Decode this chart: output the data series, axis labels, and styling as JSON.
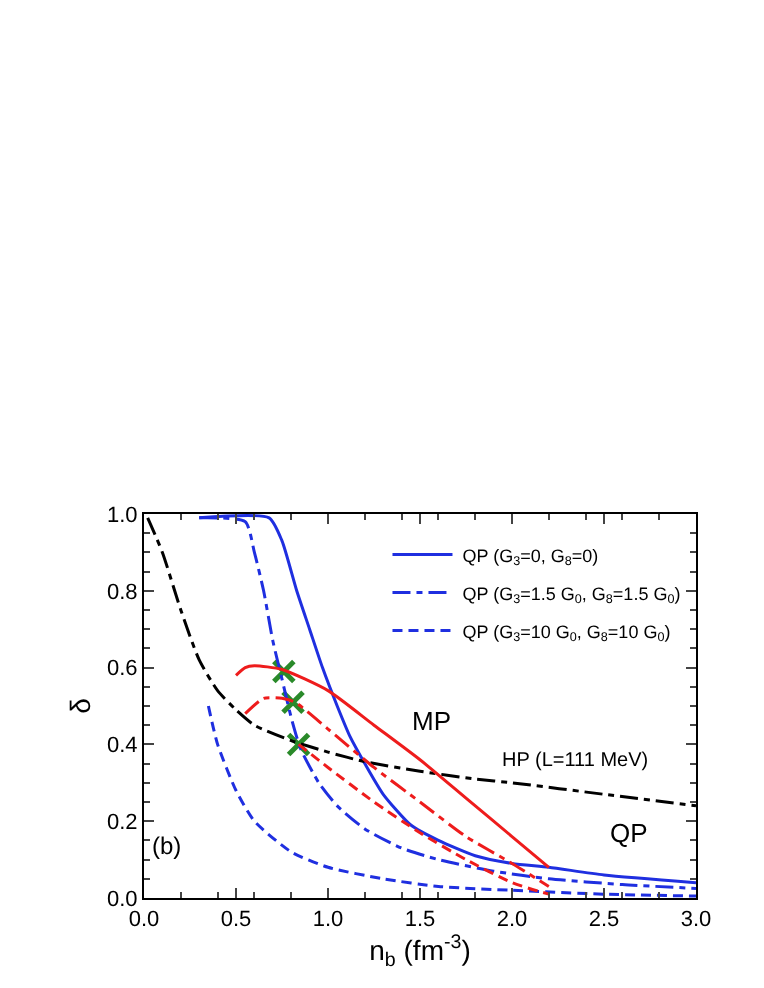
{
  "chart_data": {
    "type": "line",
    "xlabel": "n$_{b}$ (fm$^{-3}$)",
    "ylabel": "δ",
    "xlim": [
      0,
      3
    ],
    "ylim": [
      0,
      1
    ],
    "xticks": [
      {
        "value": 0,
        "label": "0.0"
      },
      0.5,
      {
        "value": 1,
        "label": "1.0"
      },
      1.5,
      {
        "value": 2,
        "label": "2.0"
      },
      2.5,
      {
        "value": 3,
        "label": "3.0"
      }
    ],
    "yticks": [
      {
        "value": 0,
        "label": "0.0"
      },
      0.2,
      0.4,
      0.6,
      0.8,
      {
        "value": 1,
        "label": "1.0"
      }
    ],
    "legend": "top right",
    "marker": "none",
    "series": [
      {
        "name": "QP (G$_{3}$=0, G$_{8}$=0)",
        "color": "#1f2fe0",
        "line_style": "solid",
        "x": [
          0.3,
          0.68,
          0.75,
          0.83,
          0.9,
          0.97,
          1.05,
          1.12,
          1.2,
          1.3,
          1.45,
          1.6,
          1.8,
          2.0,
          2.2,
          2.5,
          3.0
        ],
        "values": [
          0.99,
          0.99,
          0.93,
          0.8,
          0.7,
          0.6,
          0.5,
          0.42,
          0.35,
          0.27,
          0.19,
          0.15,
          0.11,
          0.09,
          0.08,
          0.06,
          0.04
        ]
      },
      {
        "name": "QP (G$_{3}$=1.5 G$_{0}$, G$_{8}$=1.5 G$_{0}$)",
        "color": "#1f2fe0",
        "line_style": "dashdot",
        "x": [
          0.3,
          0.55,
          0.6,
          0.65,
          0.7,
          0.75,
          0.8,
          0.85,
          0.95,
          1.05,
          1.2,
          1.4,
          1.6,
          1.9,
          2.2,
          2.6,
          3.0
        ],
        "values": [
          0.99,
          0.98,
          0.9,
          0.8,
          0.67,
          0.57,
          0.47,
          0.39,
          0.3,
          0.24,
          0.18,
          0.13,
          0.1,
          0.07,
          0.05,
          0.035,
          0.025
        ]
      },
      {
        "name": "QP (G$_{3}$=10 G$_{0}$, G$_{8}$=10 G$_{0}$)",
        "color": "#1f2fe0",
        "line_style": "dashed",
        "x": [
          0.35,
          0.4,
          0.5,
          0.6,
          0.8,
          1.0,
          1.3,
          1.6,
          2.0,
          2.5,
          3.0
        ],
        "values": [
          0.5,
          0.4,
          0.28,
          0.2,
          0.12,
          0.08,
          0.05,
          0.03,
          0.02,
          0.01,
          0.005
        ]
      },
      {
        "color": "#000000",
        "line_style": "dashdot",
        "x": [
          0.02,
          0.1,
          0.2,
          0.3,
          0.4,
          0.5,
          0.6,
          0.8,
          1.0,
          1.2,
          1.5,
          1.8,
          2.0,
          2.5,
          3.0
        ],
        "values": [
          0.99,
          0.9,
          0.75,
          0.62,
          0.54,
          0.49,
          0.45,
          0.41,
          0.38,
          0.355,
          0.33,
          0.31,
          0.3,
          0.27,
          0.24
        ]
      },
      {
        "color": "#ee1c1c",
        "line_style": "solid",
        "x": [
          0.5,
          0.55,
          0.6,
          0.75,
          1.0,
          1.25,
          1.5,
          1.75,
          2.0,
          2.2
        ],
        "values": [
          0.58,
          0.6,
          0.605,
          0.595,
          0.54,
          0.45,
          0.36,
          0.26,
          0.16,
          0.08
        ]
      },
      {
        "color": "#ee1c1c",
        "line_style": "dashdot",
        "x": [
          0.55,
          0.65,
          0.75,
          0.82,
          1.0,
          1.25,
          1.5,
          1.75,
          2.0,
          2.2
        ],
        "values": [
          0.48,
          0.52,
          0.52,
          0.51,
          0.44,
          0.34,
          0.25,
          0.16,
          0.09,
          0.03
        ]
      },
      {
        "color": "#ee1c1c",
        "line_style": "dashed",
        "x": [
          0.84,
          1.0,
          1.25,
          1.5,
          1.75,
          2.0,
          2.2
        ],
        "values": [
          0.4,
          0.34,
          0.25,
          0.17,
          0.1,
          0.04,
          0.01
        ]
      },
      {
        "type": "scatter",
        "marker": "cross",
        "color": "#2a8a2a",
        "x": [
          0.76,
          0.81,
          0.84
        ],
        "values": [
          0.59,
          0.51,
          0.4
        ]
      }
    ],
    "annotations": [
      "MP",
      "HP (L=111 MeV)",
      "QP",
      "(b)"
    ]
  }
}
